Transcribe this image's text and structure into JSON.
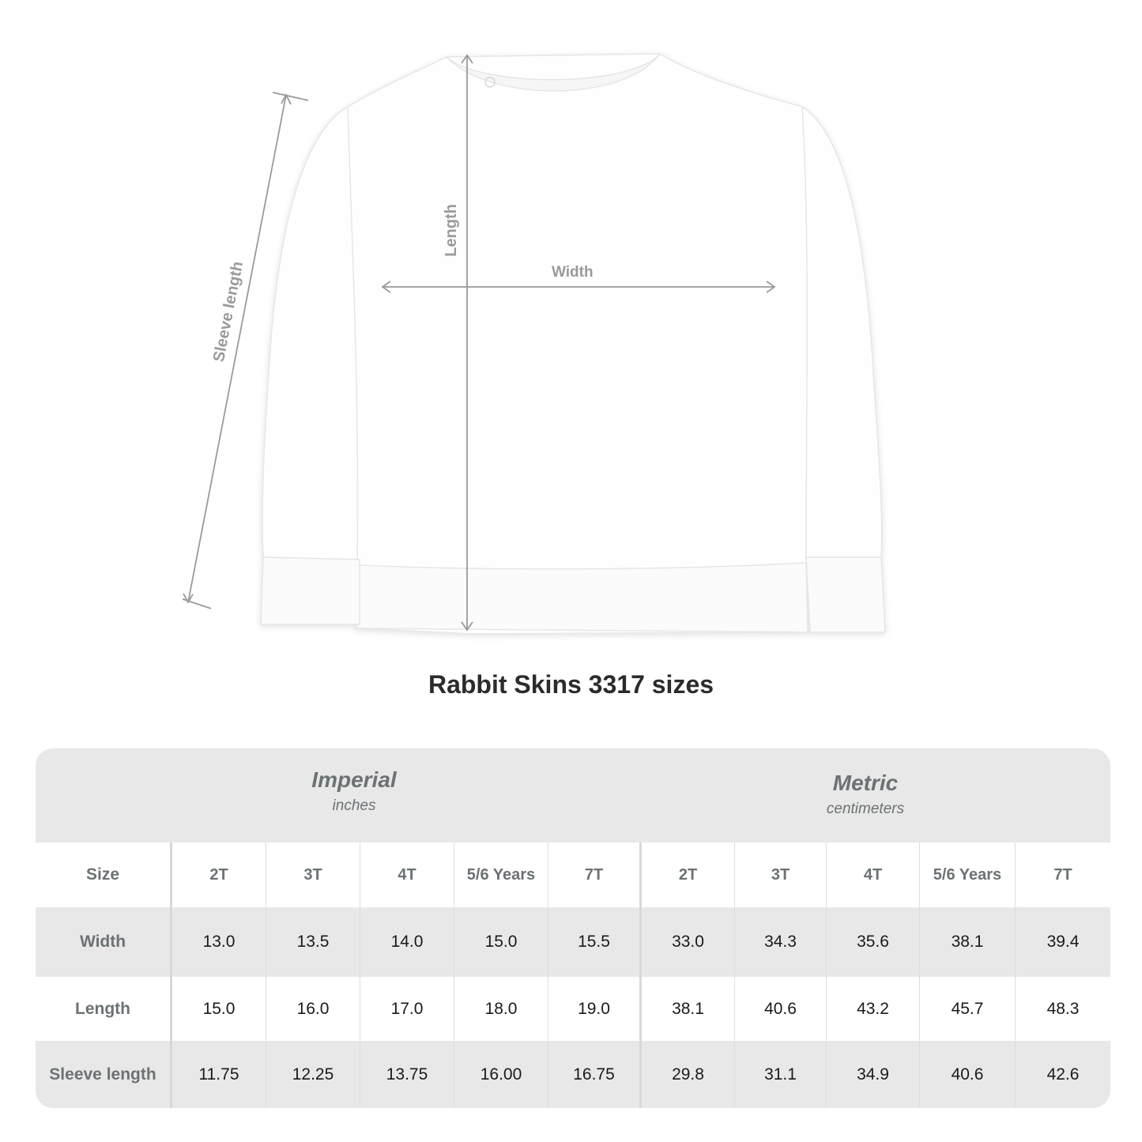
{
  "diagram": {
    "labels": {
      "length": "Length",
      "width": "Width",
      "sleeve_length": "Sleeve length"
    },
    "line_color": "#9a9a9a"
  },
  "title": "Rabbit Skins 3317 sizes",
  "table": {
    "imperial": {
      "name": "Imperial",
      "unit": "inches"
    },
    "metric": {
      "name": "Metric",
      "unit": "centimeters"
    },
    "size_label": "Size",
    "sizes": [
      "2T",
      "3T",
      "4T",
      "5/6 Years",
      "7T"
    ],
    "rows": [
      {
        "label": "Width",
        "imperial": [
          "13.0",
          "13.5",
          "14.0",
          "15.0",
          "15.5"
        ],
        "metric": [
          "33.0",
          "34.3",
          "35.6",
          "38.1",
          "39.4"
        ]
      },
      {
        "label": "Length",
        "imperial": [
          "15.0",
          "16.0",
          "17.0",
          "18.0",
          "19.0"
        ],
        "metric": [
          "38.1",
          "40.6",
          "43.2",
          "45.7",
          "48.3"
        ]
      },
      {
        "label": "Sleeve length",
        "imperial": [
          "11.75",
          "12.25",
          "13.75",
          "16.00",
          "16.75"
        ],
        "metric": [
          "29.8",
          "31.1",
          "34.9",
          "40.6",
          "42.6"
        ]
      }
    ]
  }
}
